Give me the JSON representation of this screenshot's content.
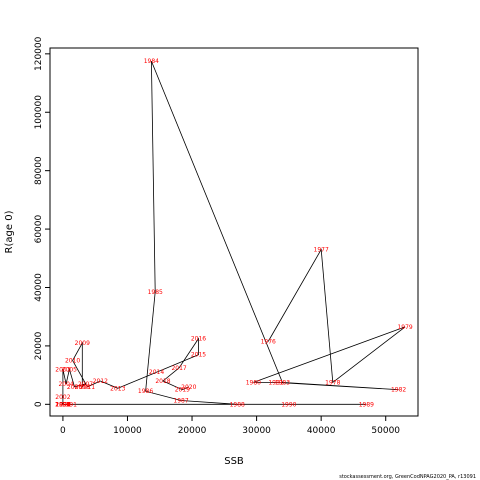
{
  "chart_data": {
    "type": "line",
    "xlabel": "SSB",
    "ylabel": "R(age 0)",
    "xlim": [
      -2000,
      55000
    ],
    "ylim": [
      -4000,
      122000
    ],
    "xticks": [
      0,
      10000,
      20000,
      30000,
      40000,
      50000
    ],
    "yticks": [
      0,
      20000,
      40000,
      60000,
      80000,
      100000,
      120000
    ],
    "footer": "stockassessment.org, GreenCodNPAG2020_PA, r13091",
    "colors": {
      "line": "#000000",
      "labels": "#ff0000"
    },
    "points": [
      {
        "label": "1976",
        "x": 31800,
        "y": 21500
      },
      {
        "label": "1977",
        "x": 40000,
        "y": 53000
      },
      {
        "label": "1978",
        "x": 41800,
        "y": 7500
      },
      {
        "label": "1979",
        "x": 53000,
        "y": 26500
      },
      {
        "label": "1980",
        "x": 29500,
        "y": 7500
      },
      {
        "label": "1981",
        "x": 33000,
        "y": 7500
      },
      {
        "label": "1982",
        "x": 52000,
        "y": 5000
      },
      {
        "label": "1983",
        "x": 34000,
        "y": 7500
      },
      {
        "label": "1984",
        "x": 13700,
        "y": 117500
      },
      {
        "label": "1985",
        "x": 14300,
        "y": 38500
      },
      {
        "label": "1986",
        "x": 12800,
        "y": 4500
      },
      {
        "label": "1987",
        "x": 18300,
        "y": 1300
      },
      {
        "label": "1988",
        "x": 27000,
        "y": 0
      },
      {
        "label": "1989",
        "x": 47000,
        "y": 0
      },
      {
        "label": "1990",
        "x": 35000,
        "y": 0
      },
      {
        "label": "1991",
        "x": 1000,
        "y": 0
      },
      {
        "label": "1992",
        "x": 0,
        "y": 0
      },
      {
        "label": "1993",
        "x": 0,
        "y": 0
      },
      {
        "label": "1994",
        "x": 0,
        "y": 0
      },
      {
        "label": "1995",
        "x": 0,
        "y": 0
      },
      {
        "label": "1996",
        "x": 0,
        "y": 0
      },
      {
        "label": "1997",
        "x": 0,
        "y": 0
      },
      {
        "label": "1998",
        "x": 0,
        "y": 0
      },
      {
        "label": "1999",
        "x": 0,
        "y": 0
      },
      {
        "label": "2000",
        "x": 0,
        "y": 0
      },
      {
        "label": "2001",
        "x": 0,
        "y": 0
      },
      {
        "label": "2002",
        "x": 0,
        "y": 2500
      },
      {
        "label": "2003",
        "x": 0,
        "y": 12000
      },
      {
        "label": "2004",
        "x": 500,
        "y": 7000
      },
      {
        "label": "2005",
        "x": 1000,
        "y": 12000
      },
      {
        "label": "2006",
        "x": 1800,
        "y": 6000
      },
      {
        "label": "2007",
        "x": 3500,
        "y": 7000
      },
      {
        "label": "2008",
        "x": 3000,
        "y": 6000
      },
      {
        "label": "2009",
        "x": 3000,
        "y": 21000
      },
      {
        "label": "2010",
        "x": 1500,
        "y": 15000
      },
      {
        "label": "2011",
        "x": 3800,
        "y": 6000
      },
      {
        "label": "2012",
        "x": 5800,
        "y": 8000
      },
      {
        "label": "2013",
        "x": 8500,
        "y": 5500
      },
      {
        "label": "2014",
        "x": 14500,
        "y": 11000
      },
      {
        "label": "2015",
        "x": 21000,
        "y": 17000
      },
      {
        "label": "2016",
        "x": 21000,
        "y": 22500
      },
      {
        "label": "2017",
        "x": 18000,
        "y": 12500
      },
      {
        "label": "2018",
        "x": 15500,
        "y": 8000
      },
      {
        "label": "2019",
        "x": 18500,
        "y": 5000
      },
      {
        "label": "2020",
        "x": 19500,
        "y": 6000
      }
    ]
  }
}
